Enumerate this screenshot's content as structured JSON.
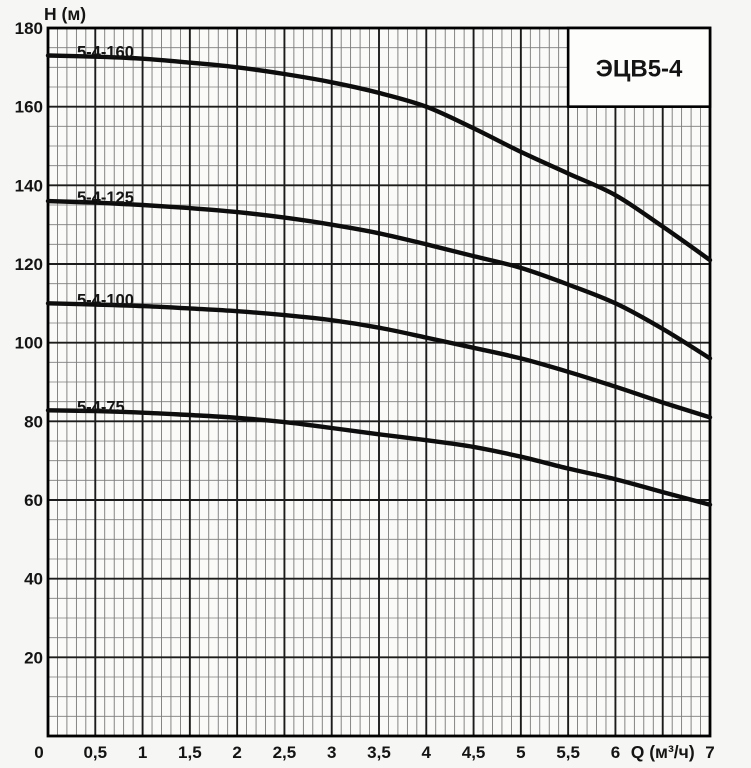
{
  "chart_data": {
    "type": "line",
    "title": "ЭЦВ5-4",
    "ylabel": "H (м)",
    "xlabel": "Q (м³/ч)",
    "xlim": [
      0,
      7
    ],
    "ylim": [
      0,
      180
    ],
    "grid": "on",
    "x_minor_step": 0.1,
    "x_major_step": 0.5,
    "y_minor_step": 5,
    "y_major_step": 20,
    "x_ticks": [
      {
        "v": 0,
        "label": "0"
      },
      {
        "v": 0.5,
        "label": "0,5"
      },
      {
        "v": 1,
        "label": "1"
      },
      {
        "v": 1.5,
        "label": "1,5"
      },
      {
        "v": 2,
        "label": "2"
      },
      {
        "v": 2.5,
        "label": "2,5"
      },
      {
        "v": 3,
        "label": "3"
      },
      {
        "v": 3.5,
        "label": "3,5"
      },
      {
        "v": 4,
        "label": "4"
      },
      {
        "v": 4.5,
        "label": "4,5"
      },
      {
        "v": 5,
        "label": "5"
      },
      {
        "v": 5.5,
        "label": "5,5"
      },
      {
        "v": 6,
        "label": "6"
      },
      {
        "v": 7,
        "label": "7"
      }
    ],
    "xlabel_position": 6.5,
    "y_ticks": [
      {
        "v": 20,
        "label": "20"
      },
      {
        "v": 40,
        "label": "40"
      },
      {
        "v": 60,
        "label": "60"
      },
      {
        "v": 80,
        "label": "80"
      },
      {
        "v": 100,
        "label": "100"
      },
      {
        "v": 120,
        "label": "120"
      },
      {
        "v": 140,
        "label": "140"
      },
      {
        "v": 160,
        "label": "160"
      },
      {
        "v": 180,
        "label": "180"
      }
    ],
    "title_box": {
      "label": "ЭЦВ5-4",
      "q_range": [
        5.5,
        7
      ],
      "h_range": [
        160,
        180
      ]
    },
    "x": [
      0,
      0.5,
      1,
      1.5,
      2,
      2.5,
      3,
      3.5,
      4,
      4.5,
      5,
      5.5,
      6,
      6.5,
      7
    ],
    "series": [
      {
        "name": "5-4-160",
        "h": [
          173,
          172.7,
          172.2,
          171.2,
          170,
          168.3,
          166.2,
          163.5,
          160,
          154.5,
          148.5,
          143,
          137.5,
          129.5,
          121
        ]
      },
      {
        "name": "5-4-125",
        "h": [
          136,
          135.6,
          135,
          134.2,
          133.2,
          131.8,
          130,
          127.8,
          125,
          122,
          119,
          114.8,
          110,
          103.5,
          96
        ]
      },
      {
        "name": "5-4-100",
        "h": [
          110,
          109.7,
          109.3,
          108.7,
          108,
          107,
          105.7,
          103.8,
          101.3,
          98.7,
          96,
          92.6,
          88.8,
          84.8,
          81
        ]
      },
      {
        "name": "5-4-75",
        "h": [
          82.8,
          82.6,
          82.2,
          81.6,
          80.9,
          79.8,
          78.3,
          76.7,
          75.2,
          73.5,
          71,
          68,
          65.3,
          62,
          58.8
        ]
      }
    ],
    "legend_position": "top-right",
    "colors": {
      "curve": "#0d0d0d",
      "grid_major": "#1c1c1c",
      "grid_minor_v": "#686868",
      "grid_minor_h": "#7d7d7d",
      "border": "#000000",
      "box_bg": "#fdfdfc",
      "plot_bg": "#fafaf8",
      "text": "#141414"
    }
  }
}
